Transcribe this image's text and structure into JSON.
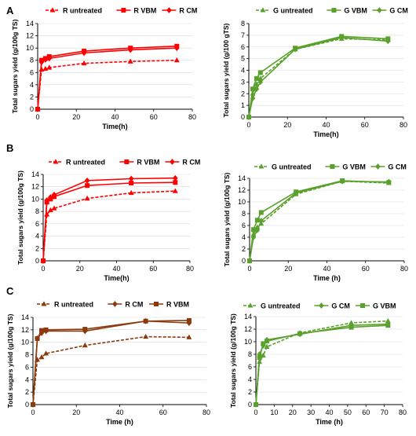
{
  "panel_labels": [
    "A",
    "B",
    "C"
  ],
  "chart_data": [
    {
      "id": "A-left",
      "type": "line",
      "row": 0,
      "col": 0,
      "xlabel": "Time(h)",
      "ylabel": "Total sugars yield (g/100g TS)",
      "xlim": [
        0,
        80
      ],
      "xticks": [
        0,
        20,
        40,
        60,
        80
      ],
      "ylim": [
        0,
        14
      ],
      "yticks": [
        0,
        2,
        4,
        6,
        8,
        10,
        12,
        14
      ],
      "legend_position": "top",
      "x": [
        0,
        2,
        4,
        6,
        24,
        48,
        72
      ],
      "series": [
        {
          "name": "R untreated",
          "color": "#ff0000",
          "dashed": true,
          "marker": "triangle",
          "values": [
            0,
            6.5,
            6.6,
            6.8,
            7.5,
            7.8,
            8.0
          ]
        },
        {
          "name": "R VBM",
          "color": "#ff0000",
          "dashed": false,
          "marker": "square",
          "values": [
            0,
            8.0,
            8.3,
            8.6,
            9.5,
            10.0,
            10.3
          ]
        },
        {
          "name": "R CM",
          "color": "#ff0000",
          "dashed": false,
          "marker": "diamond",
          "values": [
            0,
            7.7,
            8.1,
            8.3,
            9.2,
            9.7,
            10.0
          ]
        }
      ]
    },
    {
      "id": "A-right",
      "type": "line",
      "row": 0,
      "col": 1,
      "xlabel": "Time(h)",
      "ylabel": "Total sugars yield (g/100 gTS)",
      "xlim": [
        0,
        80
      ],
      "xticks": [
        0,
        20,
        40,
        60,
        80
      ],
      "ylim": [
        0,
        8
      ],
      "yticks": [
        0,
        1,
        2,
        3,
        4,
        5,
        6,
        7,
        8
      ],
      "legend_position": "top",
      "x": [
        0,
        2,
        4,
        6,
        24,
        48,
        72
      ],
      "series": [
        {
          "name": "G untreated",
          "color": "#5aa02c",
          "dashed": true,
          "marker": "triangle",
          "values": [
            0,
            2.0,
            2.8,
            3.3,
            5.8,
            6.7,
            6.6
          ]
        },
        {
          "name": "G VBM",
          "color": "#5aa02c",
          "dashed": false,
          "marker": "square",
          "values": [
            0,
            2.4,
            3.3,
            3.8,
            5.9,
            6.9,
            6.7
          ]
        },
        {
          "name": "G CM",
          "color": "#5aa02c",
          "dashed": false,
          "marker": "diamond",
          "values": [
            0,
            1.6,
            2.4,
            3.0,
            5.8,
            6.8,
            6.5
          ]
        }
      ]
    },
    {
      "id": "B-left",
      "type": "line",
      "row": 1,
      "col": 0,
      "xlabel": "Time(h)",
      "ylabel": "Total sugars yield (g/100g TS)",
      "xlim": [
        0,
        80
      ],
      "xticks": [
        0,
        20,
        40,
        60,
        80
      ],
      "ylim": [
        0,
        14
      ],
      "yticks": [
        0,
        2,
        4,
        6,
        8,
        10,
        12,
        14
      ],
      "legend_position": "top",
      "x": [
        0,
        2,
        4,
        6,
        24,
        48,
        72
      ],
      "series": [
        {
          "name": "R untreated",
          "color": "#ff0000",
          "dashed": true,
          "marker": "triangle",
          "values": [
            0,
            7.5,
            8.2,
            8.5,
            10.1,
            11.0,
            11.3
          ]
        },
        {
          "name": "R VBM",
          "color": "#ff0000",
          "dashed": false,
          "marker": "square",
          "values": [
            0,
            9.5,
            10.0,
            10.4,
            12.2,
            12.6,
            12.7
          ]
        },
        {
          "name": "R CM",
          "color": "#ff0000",
          "dashed": false,
          "marker": "diamond",
          "values": [
            0,
            9.8,
            10.3,
            10.7,
            13.0,
            13.3,
            13.4
          ]
        }
      ]
    },
    {
      "id": "B-right",
      "type": "line",
      "row": 1,
      "col": 1,
      "xlabel": "Time (h)",
      "ylabel": "Total sugars yield (g/100g TS)",
      "xlim": [
        0,
        80
      ],
      "xticks": [
        0,
        20,
        40,
        60,
        80
      ],
      "ylim": [
        0,
        14
      ],
      "yticks": [
        0,
        2,
        4,
        6,
        8,
        10,
        12,
        14
      ],
      "legend_position": "top",
      "x": [
        0,
        2,
        4,
        6,
        24,
        48,
        72
      ],
      "series": [
        {
          "name": "G untreated",
          "color": "#5aa02c",
          "dashed": true,
          "marker": "triangle",
          "values": [
            0,
            4.5,
            5.7,
            6.3,
            11.3,
            13.5,
            13.2
          ]
        },
        {
          "name": "G VBM",
          "color": "#5aa02c",
          "dashed": false,
          "marker": "square",
          "values": [
            0,
            5.3,
            6.9,
            8.2,
            11.7,
            13.6,
            13.3
          ]
        },
        {
          "name": "G CM",
          "color": "#5aa02c",
          "dashed": false,
          "marker": "diamond",
          "values": [
            0,
            4.0,
            5.2,
            6.8,
            11.5,
            13.5,
            13.4
          ]
        }
      ]
    },
    {
      "id": "C-left",
      "type": "line",
      "row": 2,
      "col": 0,
      "xlabel": "Time (h)",
      "ylabel": "Total sugars yield (g/100g TS)",
      "xlim": [
        0,
        80
      ],
      "xticks": [
        0,
        20,
        40,
        60,
        80
      ],
      "ylim": [
        0,
        14
      ],
      "yticks": [
        0,
        2,
        4,
        6,
        8,
        10,
        12,
        14
      ],
      "legend_position": "top",
      "x": [
        0,
        2,
        4,
        6,
        24,
        52,
        72
      ],
      "series": [
        {
          "name": "R untreated",
          "color": "#8b3a0e",
          "dashed": true,
          "marker": "triangle",
          "values": [
            0,
            7.2,
            7.6,
            8.2,
            9.5,
            10.9,
            10.8
          ]
        },
        {
          "name": "R CM",
          "color": "#8b3a0e",
          "dashed": false,
          "marker": "diamond",
          "values": [
            0,
            10.6,
            11.5,
            11.8,
            11.8,
            13.4,
            13.1
          ]
        },
        {
          "name": "R VBM",
          "color": "#8b3a0e",
          "dashed": false,
          "marker": "square",
          "values": [
            0,
            10.6,
            11.9,
            12.0,
            12.1,
            13.4,
            13.5
          ]
        }
      ]
    },
    {
      "id": "C-right",
      "type": "line",
      "row": 2,
      "col": 1,
      "xlabel": "Time (h)",
      "ylabel": "Total sugars yield (g/100g TS)",
      "xlim": [
        0,
        80
      ],
      "xticks": [
        0,
        10,
        20,
        30,
        40,
        50,
        60,
        70,
        80
      ],
      "ylim": [
        0,
        14
      ],
      "yticks": [
        0,
        2,
        4,
        6,
        8,
        10,
        12,
        14
      ],
      "legend_position": "top",
      "x": [
        0,
        2,
        4,
        6,
        24,
        52,
        72
      ],
      "series": [
        {
          "name": "G untreated",
          "color": "#5aa02c",
          "dashed": true,
          "marker": "triangle",
          "values": [
            0,
            6.8,
            7.8,
            9.2,
            11.4,
            13.0,
            13.3
          ]
        },
        {
          "name": "G CM",
          "color": "#5aa02c",
          "dashed": false,
          "marker": "diamond",
          "values": [
            0,
            8.0,
            9.4,
            10.3,
            11.2,
            12.6,
            12.8
          ]
        },
        {
          "name": "G VBM",
          "color": "#5aa02c",
          "dashed": false,
          "marker": "square",
          "values": [
            0,
            7.5,
            9.7,
            10.1,
            11.3,
            12.3,
            12.6
          ]
        }
      ]
    }
  ]
}
